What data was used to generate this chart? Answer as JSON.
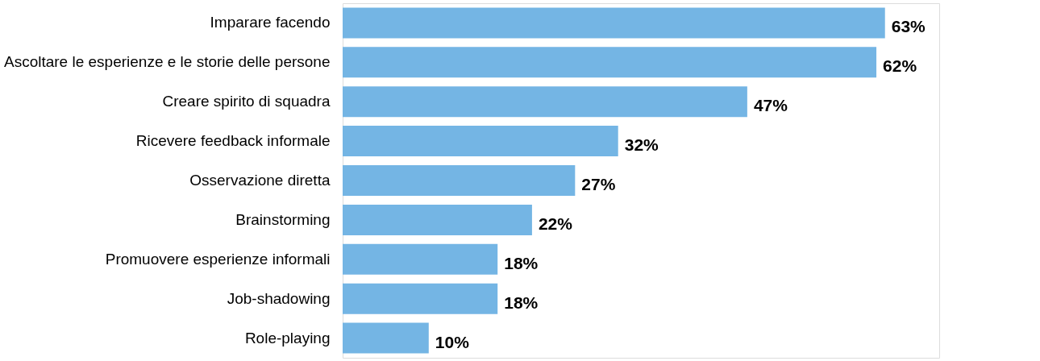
{
  "chart_data": {
    "type": "bar",
    "orientation": "horizontal",
    "categories": [
      "Imparare facendo",
      "Ascoltare le esperienze e le storie delle persone",
      "Creare spirito di squadra",
      "Ricevere feedback informale",
      "Osservazione diretta",
      "Brainstorming",
      "Promuovere esperienze informali",
      "Job-shadowing",
      "Role-playing"
    ],
    "values": [
      63,
      62,
      47,
      32,
      27,
      22,
      18,
      18,
      10
    ],
    "value_labels": [
      "63%",
      "62%",
      "47%",
      "32%",
      "27%",
      "22%",
      "18%",
      "18%",
      "10%"
    ],
    "color": "#74b5e4"
  }
}
